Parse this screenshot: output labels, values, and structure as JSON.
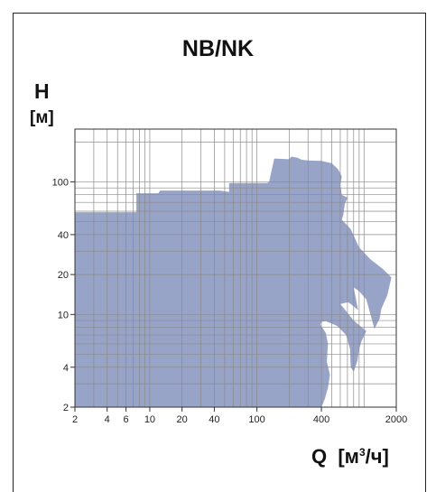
{
  "chart_data": {
    "type": "area",
    "title": "NB/NK",
    "ylabel": "H",
    "yunit": "[м]",
    "xlabel": "Q",
    "xunit_prefix": "[м",
    "xunit_sup": "3",
    "xunit_suffix": "/ч]",
    "x_scale": "log",
    "y_scale": "log",
    "xlim": [
      2,
      2000
    ],
    "ylim": [
      2,
      250
    ],
    "x_ticks": [
      2,
      4,
      6,
      10,
      20,
      40,
      100,
      400,
      2000
    ],
    "x_tick_labels": [
      "2",
      "4",
      "6",
      "10",
      "20",
      "40",
      "100",
      "400",
      "2000"
    ],
    "x_grid": [
      2,
      3,
      4,
      5,
      6,
      7,
      8,
      9,
      10,
      20,
      30,
      40,
      50,
      60,
      70,
      80,
      90,
      100,
      200,
      300,
      400,
      500,
      600,
      700,
      800,
      900,
      1000,
      2000
    ],
    "y_ticks": [
      2,
      4,
      10,
      20,
      40,
      100
    ],
    "y_tick_labels": [
      "2",
      "4",
      "10",
      "20",
      "40",
      "100"
    ],
    "y_grid": [
      2,
      3,
      4,
      5,
      6,
      7,
      8,
      9,
      10,
      20,
      30,
      40,
      50,
      60,
      70,
      80,
      90,
      100,
      200
    ],
    "grid": true,
    "fill_color": "#98A3C8",
    "regions": [
      {
        "points": [
          [
            2,
            2
          ],
          [
            2,
            59
          ],
          [
            7.5,
            59
          ],
          [
            7.5,
            82
          ],
          [
            12,
            82
          ],
          [
            12.5,
            86
          ],
          [
            45,
            86
          ],
          [
            55,
            84
          ],
          [
            55,
            98
          ],
          [
            125,
            98
          ],
          [
            130,
            100
          ],
          [
            145,
            150
          ],
          [
            200,
            148
          ],
          [
            210,
            155
          ],
          [
            240,
            152
          ],
          [
            260,
            147
          ],
          [
            300,
            145
          ],
          [
            400,
            144
          ],
          [
            500,
            138
          ],
          [
            570,
            125
          ],
          [
            620,
            110
          ],
          [
            600,
            94
          ],
          [
            610,
            88
          ],
          [
            620,
            80
          ],
          [
            700,
            76
          ],
          [
            660,
            68
          ],
          [
            640,
            56
          ],
          [
            620,
            52
          ],
          [
            750,
            44
          ],
          [
            900,
            32
          ],
          [
            1150,
            26
          ],
          [
            1500,
            22
          ],
          [
            1800,
            19
          ],
          [
            1650,
            14
          ],
          [
            1450,
            11
          ],
          [
            1400,
            9.3
          ],
          [
            1250,
            7.8
          ],
          [
            1050,
            13
          ],
          [
            900,
            15
          ],
          [
            800,
            16
          ],
          [
            880,
            10.8
          ],
          [
            750,
            12
          ],
          [
            650,
            13
          ],
          [
            750,
            12.5
          ],
          [
            600,
            12
          ],
          [
            800,
            9
          ],
          [
            1050,
            7.5
          ],
          [
            950,
            6.3
          ],
          [
            900,
            5.5
          ],
          [
            870,
            4.5
          ],
          [
            800,
            3.7
          ],
          [
            750,
            4
          ],
          [
            740,
            5.5
          ],
          [
            680,
            7
          ],
          [
            560,
            8.2
          ],
          [
            440,
            8.9
          ],
          [
            400,
            8.8
          ],
          [
            390,
            8.4
          ],
          [
            420,
            7.7
          ],
          [
            440,
            7.2
          ],
          [
            460,
            6
          ],
          [
            450,
            4.4
          ],
          [
            480,
            3.5
          ],
          [
            460,
            2.8
          ],
          [
            430,
            2.3
          ],
          [
            400,
            2
          ]
        ]
      }
    ]
  }
}
